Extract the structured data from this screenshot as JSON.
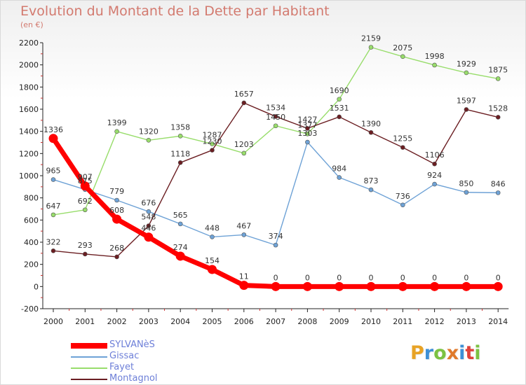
{
  "title": "Evolution du Montant de la Dette par Habitant",
  "subtitle": "(en €)",
  "brand": {
    "text": "Proxiti",
    "colors": [
      "#e8a325",
      "#3d8fd6",
      "#7cc242",
      "#e07a2b",
      "#3d8fd6",
      "#e0413a",
      "#7cc242"
    ]
  },
  "chart_data": {
    "type": "line",
    "categories": [
      "2000",
      "2001",
      "2002",
      "2003",
      "2004",
      "2005",
      "2006",
      "2007",
      "2008",
      "2009",
      "2010",
      "2011",
      "2012",
      "2013",
      "2014"
    ],
    "ylim": [
      -200,
      2200
    ],
    "yticks": [
      -200,
      0,
      200,
      400,
      600,
      800,
      1000,
      1200,
      1400,
      1600,
      1800,
      2000,
      2200
    ],
    "grid": false,
    "legend_position": "bottom-left",
    "series": [
      {
        "name": "SYLVANèS",
        "color": "#ff0000",
        "values": [
          1336,
          907,
          608,
          446,
          274,
          154,
          11,
          0,
          0,
          0,
          0,
          0,
          0,
          0,
          0
        ]
      },
      {
        "name": "Gissac",
        "color": "#6ea2d6",
        "values": [
          965,
          875,
          779,
          676,
          565,
          448,
          467,
          374,
          1303,
          984,
          873,
          736,
          924,
          850,
          846
        ]
      },
      {
        "name": "Fayet",
        "color": "#98dd6b",
        "values": [
          647,
          692,
          1399,
          1320,
          1358,
          1287,
          1203,
          1450,
          1377,
          1690,
          2159,
          2075,
          1998,
          1929,
          1875
        ]
      },
      {
        "name": "Montagnol",
        "color": "#6b1e22",
        "values": [
          322,
          293,
          268,
          548,
          1118,
          1230,
          1657,
          1534,
          1427,
          1531,
          1390,
          1255,
          1106,
          1597,
          1528
        ]
      }
    ]
  }
}
